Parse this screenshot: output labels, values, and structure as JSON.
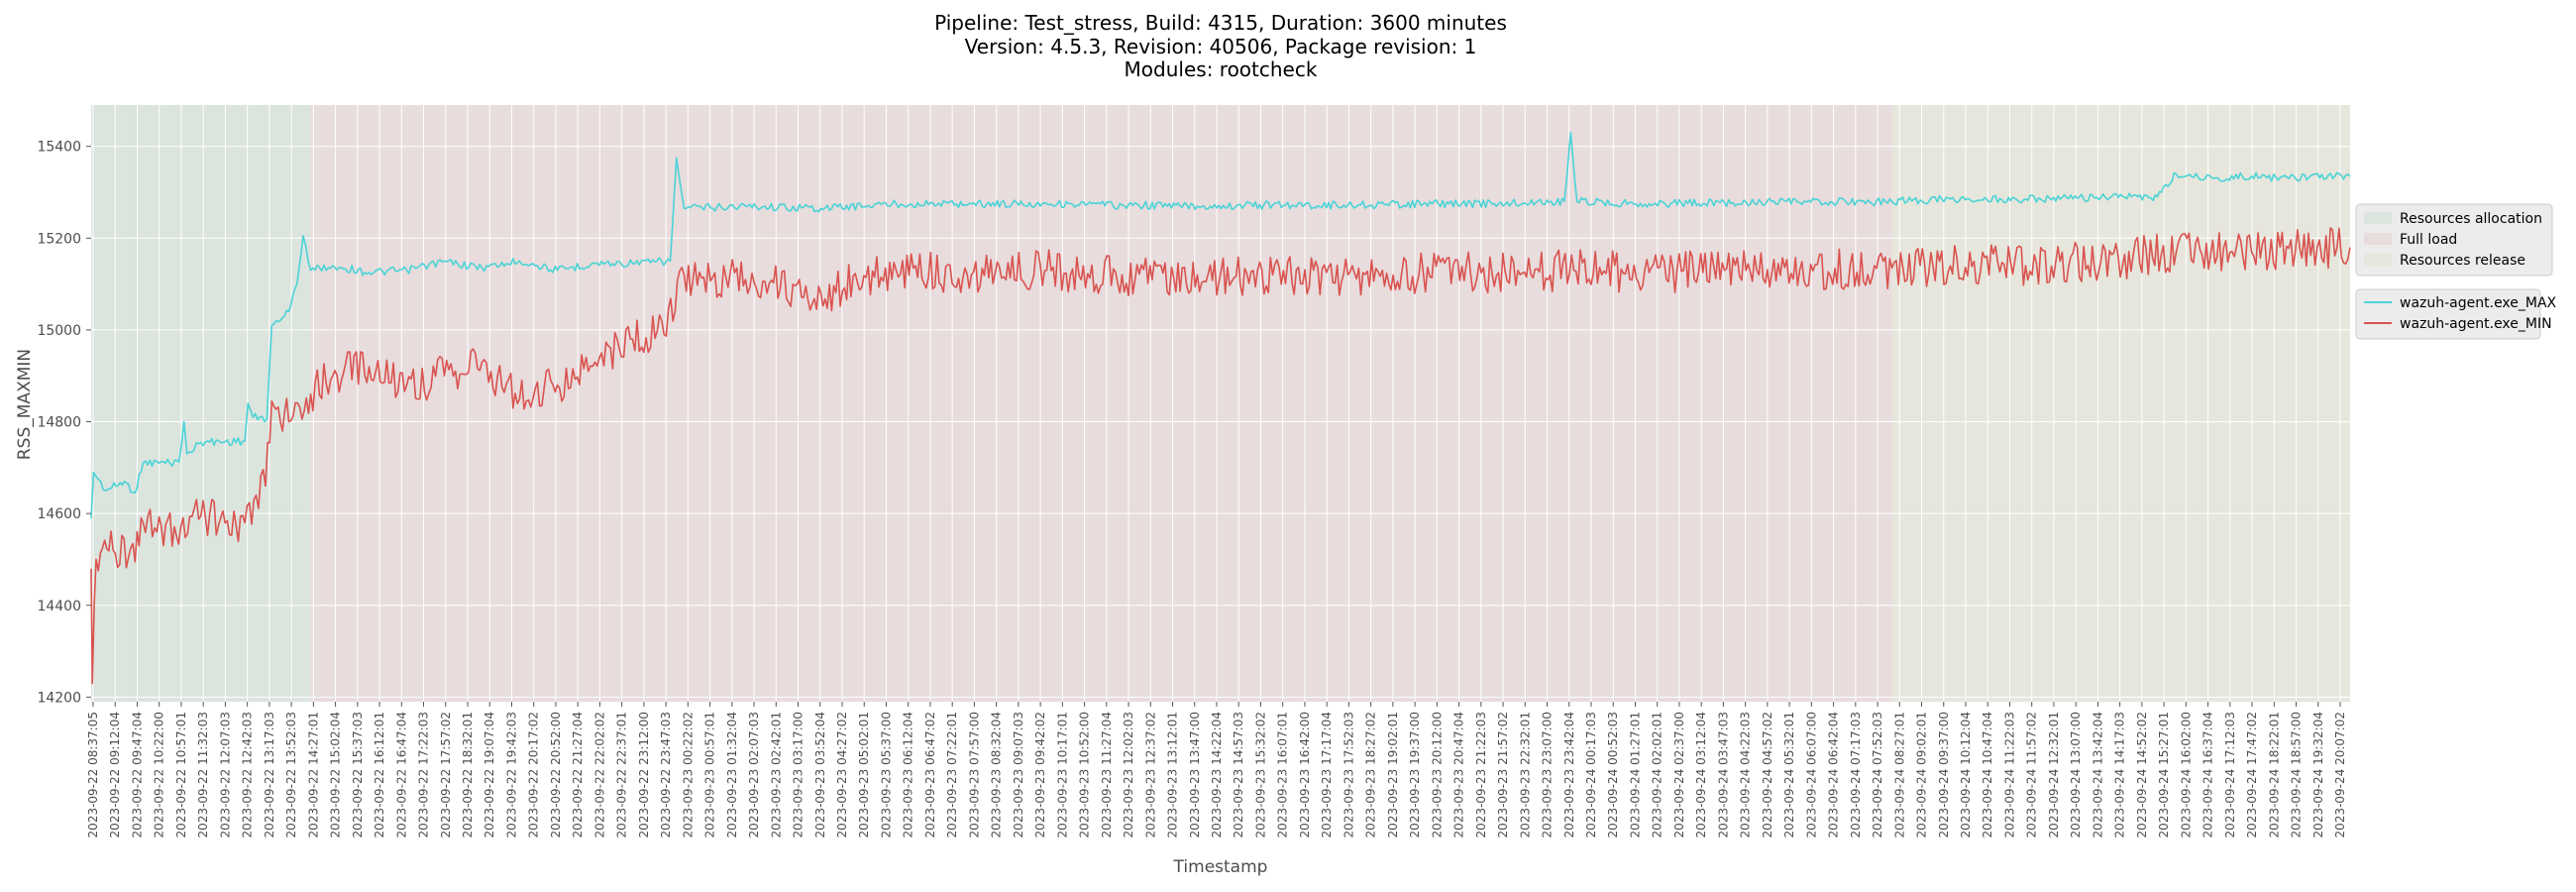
{
  "chart_data": {
    "type": "line",
    "title_lines": [
      "Pipeline: Test_stress, Build: 4315, Duration: 3600 minutes",
      "Version: 4.5.3, Revision: 40506, Package revision: 1",
      "Modules: rootcheck"
    ],
    "xlabel": "Timestamp",
    "ylabel": "RSS_MAXMIN",
    "ylim": [
      14190,
      15490
    ],
    "yticks": [
      14200,
      14400,
      14600,
      14800,
      15000,
      15200,
      15400
    ],
    "grid": true,
    "x_start": "2023-09-22 08:37:05",
    "x_end": "2023-09-24 20:37:05",
    "x_tick_labels": [
      "2023-09-22 08:37:05",
      "2023-09-22 09:12:04",
      "2023-09-22 09:47:04",
      "2023-09-22 10:22:00",
      "2023-09-22 10:57:01",
      "2023-09-22 11:32:03",
      "2023-09-22 12:07:03",
      "2023-09-22 12:42:03",
      "2023-09-22 13:17:03",
      "2023-09-22 13:52:03",
      "2023-09-22 14:27:01",
      "2023-09-22 15:02:04",
      "2023-09-22 15:37:03",
      "2023-09-22 16:12:01",
      "2023-09-22 16:47:04",
      "2023-09-22 17:22:03",
      "2023-09-22 17:57:02",
      "2023-09-22 18:32:01",
      "2023-09-22 19:07:04",
      "2023-09-22 19:42:03",
      "2023-09-22 20:17:02",
      "2023-09-22 20:52:00",
      "2023-09-22 21:27:04",
      "2023-09-22 22:02:02",
      "2023-09-22 22:37:01",
      "2023-09-22 23:12:00",
      "2023-09-22 23:47:03",
      "2023-09-23 00:22:02",
      "2023-09-23 00:57:01",
      "2023-09-23 01:32:04",
      "2023-09-23 02:07:03",
      "2023-09-23 02:42:01",
      "2023-09-23 03:17:00",
      "2023-09-23 03:52:04",
      "2023-09-23 04:27:02",
      "2023-09-23 05:02:01",
      "2023-09-23 05:37:00",
      "2023-09-23 06:12:04",
      "2023-09-23 06:47:02",
      "2023-09-23 07:22:01",
      "2023-09-23 07:57:00",
      "2023-09-23 08:32:04",
      "2023-09-23 09:07:03",
      "2023-09-23 09:42:02",
      "2023-09-23 10:17:01",
      "2023-09-23 10:52:00",
      "2023-09-23 11:27:04",
      "2023-09-23 12:02:03",
      "2023-09-23 12:37:02",
      "2023-09-23 13:12:01",
      "2023-09-23 13:47:00",
      "2023-09-23 14:22:04",
      "2023-09-23 14:57:03",
      "2023-09-23 15:32:02",
      "2023-09-23 16:07:01",
      "2023-09-23 16:42:00",
      "2023-09-23 17:17:04",
      "2023-09-23 17:52:03",
      "2023-09-23 18:27:02",
      "2023-09-23 19:02:01",
      "2023-09-23 19:37:00",
      "2023-09-23 20:12:00",
      "2023-09-23 20:47:04",
      "2023-09-23 21:22:03",
      "2023-09-23 21:57:02",
      "2023-09-23 22:32:01",
      "2023-09-23 23:07:00",
      "2023-09-23 23:42:04",
      "2023-09-24 00:17:03",
      "2023-09-24 00:52:03",
      "2023-09-24 01:27:01",
      "2023-09-24 02:02:01",
      "2023-09-24 02:37:00",
      "2023-09-24 03:12:04",
      "2023-09-24 03:47:03",
      "2023-09-24 04:22:03",
      "2023-09-24 04:57:02",
      "2023-09-24 05:32:01",
      "2023-09-24 06:07:00",
      "2023-09-24 06:42:04",
      "2023-09-24 07:17:03",
      "2023-09-24 07:52:03",
      "2023-09-24 08:27:01",
      "2023-09-24 09:02:01",
      "2023-09-24 09:37:00",
      "2023-09-24 10:12:04",
      "2023-09-24 10:47:04",
      "2023-09-24 11:22:03",
      "2023-09-24 11:57:02",
      "2023-09-24 12:32:01",
      "2023-09-24 13:07:00",
      "2023-09-24 13:42:04",
      "2023-09-24 14:17:03",
      "2023-09-24 14:52:02",
      "2023-09-24 15:27:01",
      "2023-09-24 16:02:00",
      "2023-09-24 16:37:04",
      "2023-09-24 17:12:03",
      "2023-09-24 17:47:02",
      "2023-09-24 18:22:01",
      "2023-09-24 18:57:00",
      "2023-09-24 19:32:04",
      "2023-09-24 20:07:02"
    ],
    "phases": [
      {
        "name": "Resources allocation",
        "start": "2023-09-22 08:37:05",
        "end": "2023-09-22 14:27:01",
        "color": "#dce4de"
      },
      {
        "name": "Full load",
        "start": "2023-09-22 14:27:01",
        "end": "2023-09-24 08:27:01",
        "color": "#e8dcdd"
      },
      {
        "name": "Resources release",
        "start": "2023-09-24 08:27:01",
        "end": "2023-09-24 20:37:05",
        "color": "#e6e6dc"
      }
    ],
    "series": [
      {
        "name": "wazuh-agent.exe_MAX",
        "color": "#4ad3d6",
        "points": [
          [
            "2023-09-22 08:37:05",
            14590
          ],
          [
            "2023-09-22 08:41:00",
            14690
          ],
          [
            "2023-09-22 09:00:00",
            14650
          ],
          [
            "2023-09-22 09:30:00",
            14670
          ],
          [
            "2023-09-22 09:47:04",
            14645
          ],
          [
            "2023-09-22 10:00:00",
            14710
          ],
          [
            "2023-09-22 10:57:01",
            14712
          ],
          [
            "2023-09-22 11:05:00",
            14800
          ],
          [
            "2023-09-22 11:10:00",
            14730
          ],
          [
            "2023-09-22 11:32:03",
            14755
          ],
          [
            "2023-09-22 12:42:03",
            14758
          ],
          [
            "2023-09-22 12:47:00",
            14840
          ],
          [
            "2023-09-22 12:55:00",
            14810
          ],
          [
            "2023-09-22 13:17:03",
            14805
          ],
          [
            "2023-09-22 13:25:00",
            15010
          ],
          [
            "2023-09-22 13:52:03",
            15040
          ],
          [
            "2023-09-22 14:05:00",
            15100
          ],
          [
            "2023-09-22 14:15:00",
            15205
          ],
          [
            "2023-09-22 14:27:01",
            15130
          ],
          [
            "2023-09-22 15:02:04",
            15140
          ],
          [
            "2023-09-22 16:00:00",
            15125
          ],
          [
            "2023-09-22 17:00:00",
            15130
          ],
          [
            "2023-09-22 18:00:00",
            15150
          ],
          [
            "2023-09-22 19:00:00",
            15135
          ],
          [
            "2023-09-22 20:00:00",
            15150
          ],
          [
            "2023-09-22 21:00:00",
            15130
          ],
          [
            "2023-09-22 22:00:00",
            15145
          ],
          [
            "2023-09-22 23:00:00",
            15145
          ],
          [
            "2023-09-23 00:00:00",
            15150
          ],
          [
            "2023-09-23 00:10:00",
            15375
          ],
          [
            "2023-09-23 00:22:02",
            15265
          ],
          [
            "2023-09-23 02:00:00",
            15270
          ],
          [
            "2023-09-23 04:00:00",
            15265
          ],
          [
            "2023-09-23 06:00:00",
            15275
          ],
          [
            "2023-09-23 08:00:00",
            15275
          ],
          [
            "2023-09-23 10:00:00",
            15275
          ],
          [
            "2023-09-23 12:00:00",
            15272
          ],
          [
            "2023-09-23 14:00:00",
            15270
          ],
          [
            "2023-09-23 16:00:00",
            15272
          ],
          [
            "2023-09-23 18:00:00",
            15272
          ],
          [
            "2023-09-23 20:00:00",
            15275
          ],
          [
            "2023-09-23 22:00:00",
            15275
          ],
          [
            "2023-09-23 23:45:00",
            15280
          ],
          [
            "2023-09-23 23:55:00",
            15430
          ],
          [
            "2023-09-24 00:05:00",
            15280
          ],
          [
            "2023-09-24 02:00:00",
            15275
          ],
          [
            "2023-09-24 04:00:00",
            15278
          ],
          [
            "2023-09-24 06:00:00",
            15278
          ],
          [
            "2023-09-24 08:27:01",
            15280
          ],
          [
            "2023-09-24 10:00:00",
            15285
          ],
          [
            "2023-09-24 12:00:00",
            15285
          ],
          [
            "2023-09-24 14:00:00",
            15288
          ],
          [
            "2023-09-24 15:30:00",
            15290
          ],
          [
            "2023-09-24 16:00:00",
            15340
          ],
          [
            "2023-09-24 17:00:00",
            15330
          ],
          [
            "2023-09-24 18:00:00",
            15335
          ],
          [
            "2023-09-24 19:00:00",
            15330
          ],
          [
            "2023-09-24 20:37:05",
            15335
          ]
        ]
      },
      {
        "name": "wazuh-agent.exe_MIN",
        "color": "#d9534f",
        "points": [
          [
            "2023-09-22 08:37:05",
            14480
          ],
          [
            "2023-09-22 08:39:00",
            14230
          ],
          [
            "2023-09-22 08:45:00",
            14500
          ],
          [
            "2023-09-22 09:12:04",
            14520
          ],
          [
            "2023-09-22 09:47:04",
            14495
          ],
          [
            "2023-09-22 10:00:00",
            14580
          ],
          [
            "2023-09-22 10:22:00",
            14560
          ],
          [
            "2023-09-22 11:00:00",
            14570
          ],
          [
            "2023-09-22 11:32:03",
            14595
          ],
          [
            "2023-09-22 12:42:03",
            14580
          ],
          [
            "2023-09-22 13:00:00",
            14640
          ],
          [
            "2023-09-22 13:15:00",
            14660
          ],
          [
            "2023-09-22 13:25:00",
            14845
          ],
          [
            "2023-09-22 13:52:03",
            14800
          ],
          [
            "2023-09-22 14:27:01",
            14860
          ],
          [
            "2023-09-22 15:02:04",
            14900
          ],
          [
            "2023-09-22 16:00:00",
            14920
          ],
          [
            "2023-09-22 17:00:00",
            14880
          ],
          [
            "2023-09-22 18:00:00",
            14900
          ],
          [
            "2023-09-22 19:00:00",
            14930
          ],
          [
            "2023-09-22 20:00:00",
            14850
          ],
          [
            "2023-09-22 21:00:00",
            14880
          ],
          [
            "2023-09-22 22:00:00",
            14930
          ],
          [
            "2023-09-22 23:00:00",
            14980
          ],
          [
            "2023-09-22 23:50:00",
            14990
          ],
          [
            "2023-09-23 00:22:02",
            15120
          ],
          [
            "2023-09-23 02:00:00",
            15110
          ],
          [
            "2023-09-23 04:00:00",
            15080
          ],
          [
            "2023-09-23 06:00:00",
            15130
          ],
          [
            "2023-09-23 08:00:00",
            15120
          ],
          [
            "2023-09-23 10:00:00",
            15130
          ],
          [
            "2023-09-23 12:00:00",
            15120
          ],
          [
            "2023-09-23 14:00:00",
            15120
          ],
          [
            "2023-09-23 16:00:00",
            15120
          ],
          [
            "2023-09-23 18:00:00",
            15120
          ],
          [
            "2023-09-23 20:00:00",
            15125
          ],
          [
            "2023-09-23 22:00:00",
            15125
          ],
          [
            "2023-09-24 00:00:00",
            15130
          ],
          [
            "2023-09-24 02:00:00",
            15125
          ],
          [
            "2023-09-24 04:00:00",
            15130
          ],
          [
            "2023-09-24 06:00:00",
            15130
          ],
          [
            "2023-09-24 08:27:01",
            15135
          ],
          [
            "2023-09-24 10:00:00",
            15140
          ],
          [
            "2023-09-24 12:00:00",
            15140
          ],
          [
            "2023-09-24 14:00:00",
            15150
          ],
          [
            "2023-09-24 16:00:00",
            15170
          ],
          [
            "2023-09-24 18:00:00",
            15170
          ],
          [
            "2023-09-24 20:37:05",
            15180
          ]
        ]
      }
    ]
  }
}
